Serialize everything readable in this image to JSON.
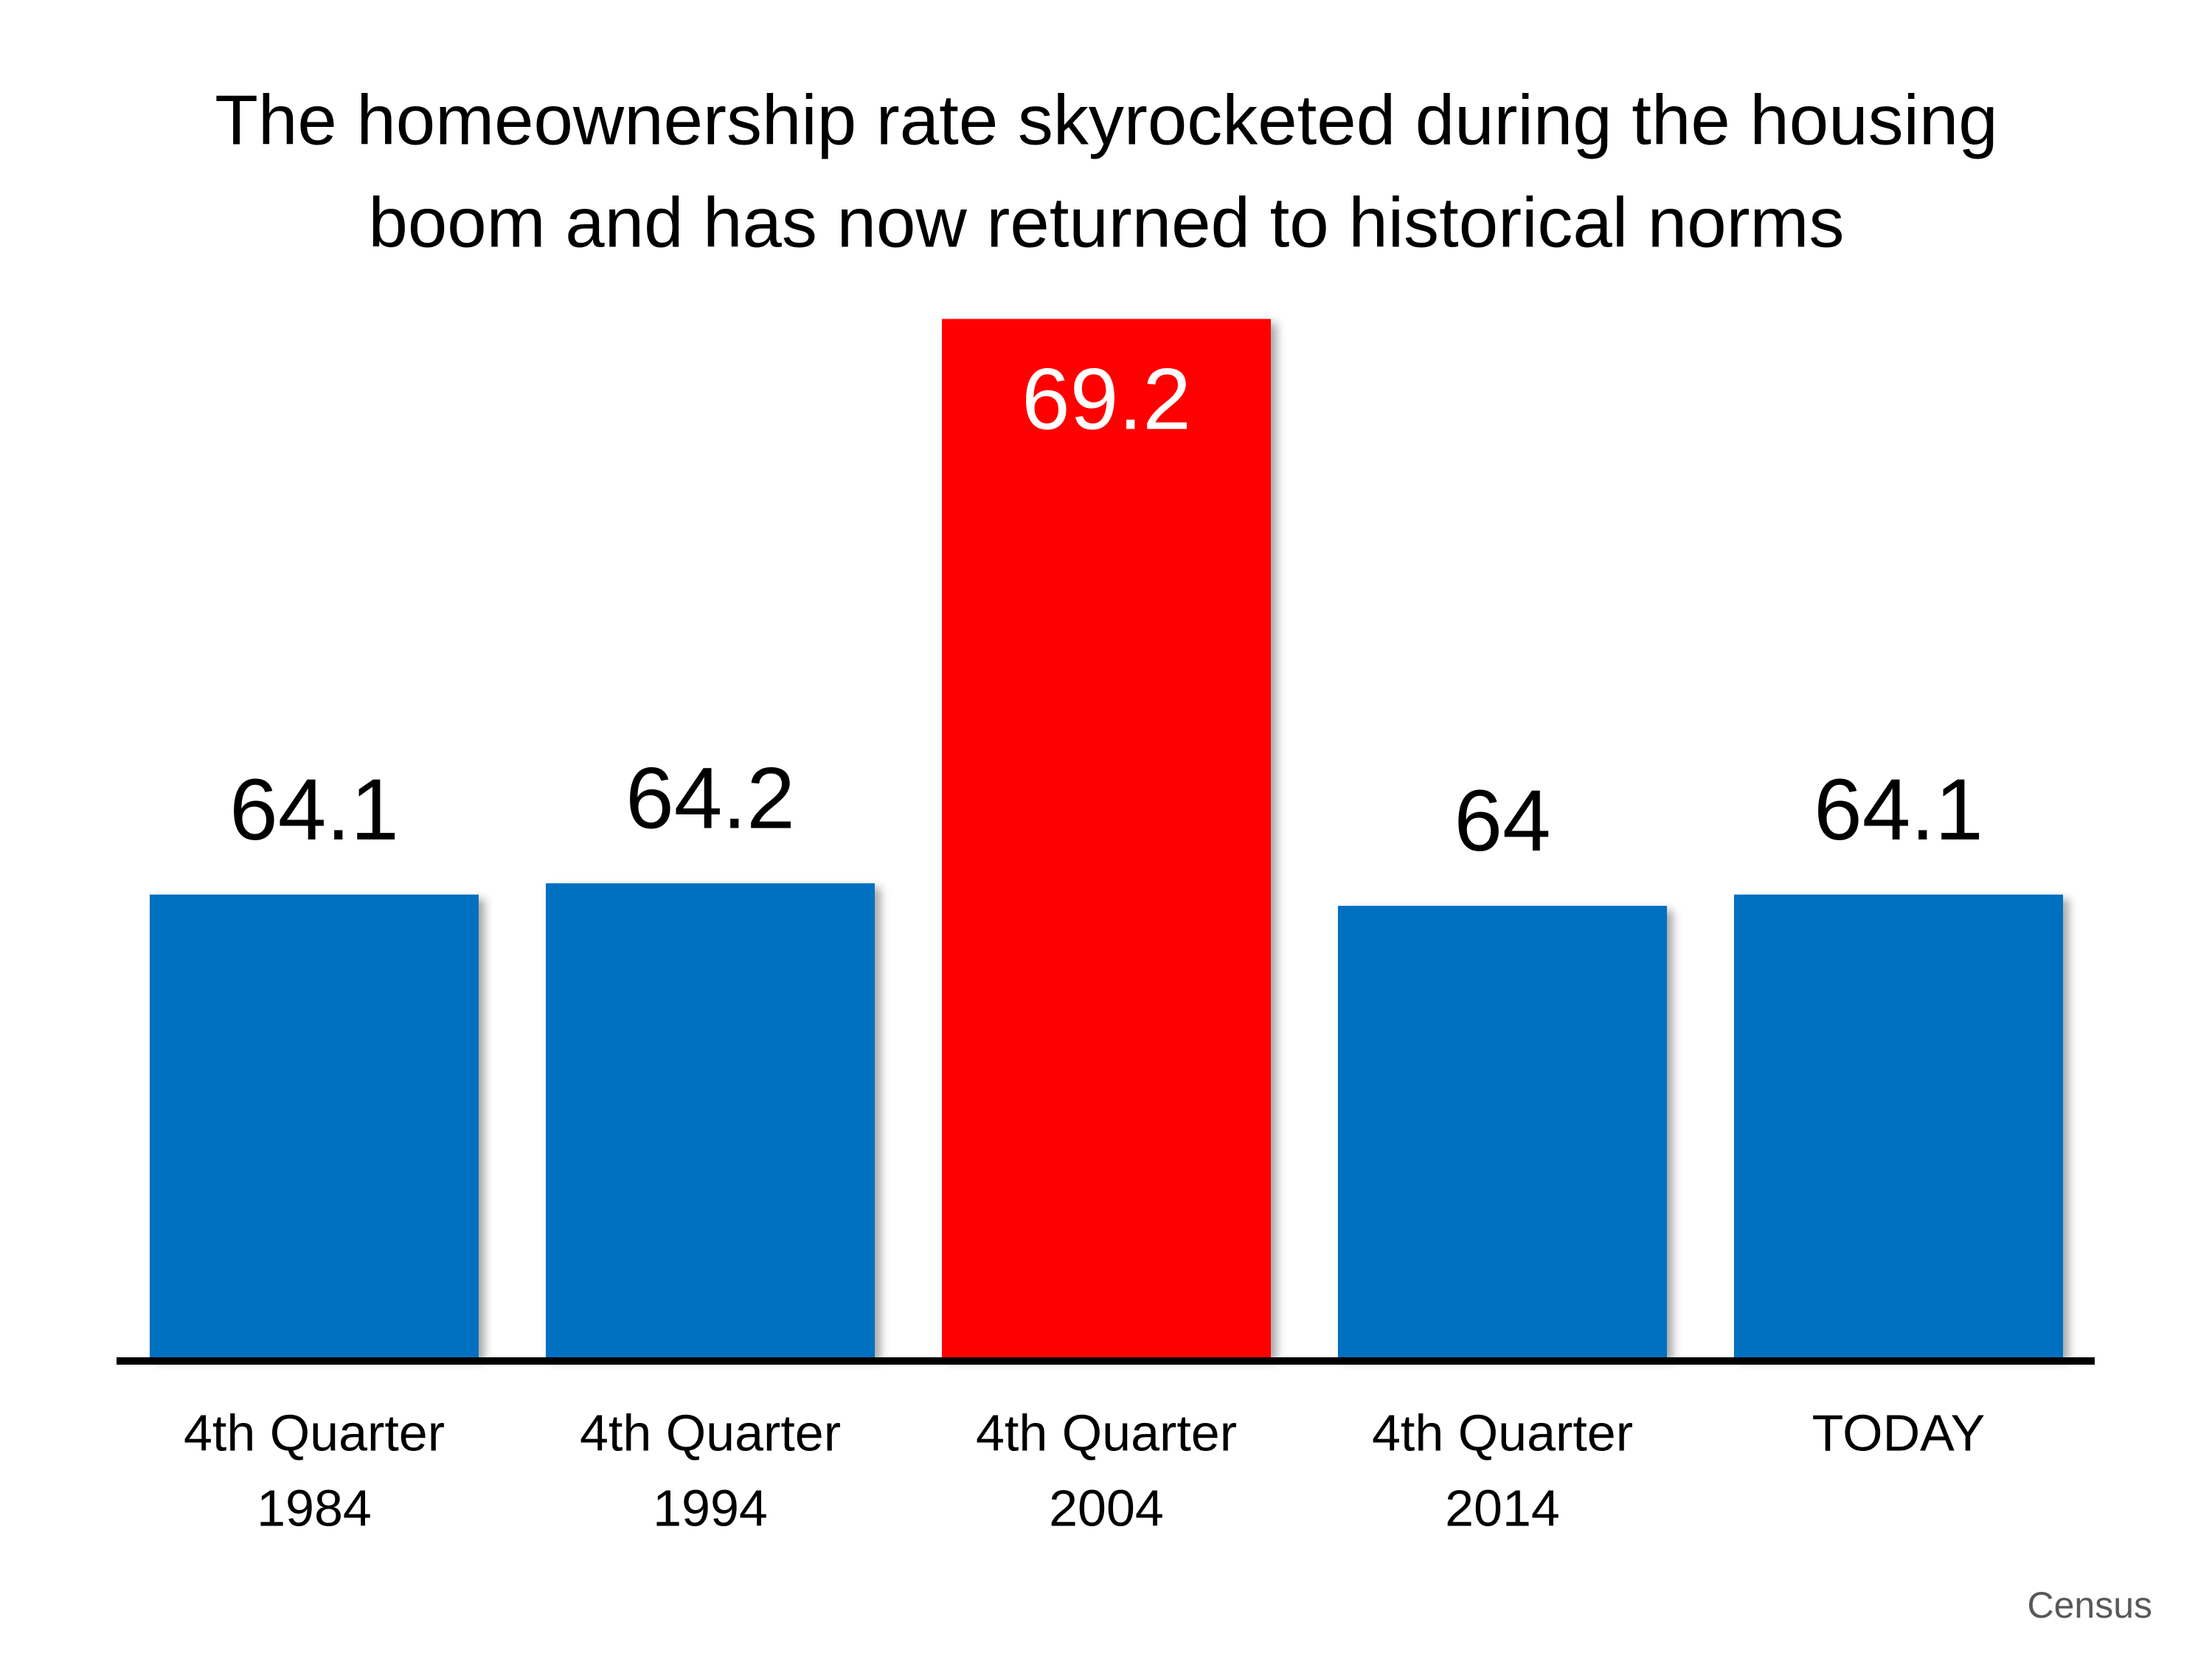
{
  "chart_data": {
    "type": "bar",
    "title": [
      "The homeownership rate skyrocketed during the housing",
      "boom and has now returned to historical norms"
    ],
    "categories": [
      [
        "4th Quarter",
        "1984"
      ],
      [
        "4th Quarter",
        "1994"
      ],
      [
        "4th Quarter",
        "2004"
      ],
      [
        "4th Quarter",
        "2014"
      ],
      [
        "TODAY"
      ]
    ],
    "values": [
      64.1,
      64.2,
      69.2,
      64,
      64.1
    ],
    "colors": [
      "#0070c0",
      "#0070c0",
      "#ff0000",
      "#0070c0",
      "#0070c0"
    ],
    "ylim": [
      60,
      70
    ],
    "source": "Census"
  }
}
